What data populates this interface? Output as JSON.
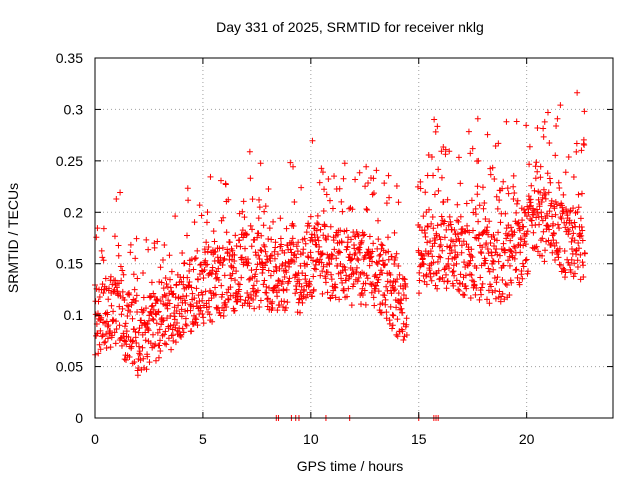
{
  "chart_data": {
    "type": "scatter",
    "title": "Day 331 of 2025, SRMTID for receiver nklg",
    "xlabel": "GPS time / hours",
    "ylabel": "SRMTID / TECUs",
    "xlim": [
      0,
      24
    ],
    "ylim": [
      0,
      0.35
    ],
    "xticks": [
      0,
      5,
      10,
      15,
      20
    ],
    "xtick_labels": [
      "0",
      "5",
      "10",
      "15",
      "20"
    ],
    "yticks": [
      0,
      0.05,
      0.1,
      0.15,
      0.2,
      0.25,
      0.3,
      0.35
    ],
    "ytick_labels": [
      "0",
      "0.05",
      "0.1",
      "0.15",
      "0.2",
      "0.25",
      "0.3",
      "0.35"
    ],
    "grid": true,
    "marker": "plus",
    "color": "#ff0000",
    "series": [
      {
        "name": "SRMTID",
        "trend": {
          "x": [
            0,
            0.5,
            1,
            1.5,
            2,
            2.5,
            3,
            3.5,
            4,
            4.5,
            5,
            5.5,
            6,
            6.5,
            7,
            7.5,
            8,
            8.5,
            9,
            9.5,
            10,
            10.5,
            11,
            11.5,
            12,
            12.5,
            13,
            13.5,
            14,
            14.5,
            15,
            15.5,
            16,
            16.5,
            17,
            17.5,
            18,
            18.5,
            19,
            19.5,
            20,
            20.5,
            21,
            21.5,
            22,
            22.5
          ],
          "y": [
            0.095,
            0.1,
            0.1,
            0.09,
            0.075,
            0.08,
            0.095,
            0.1,
            0.115,
            0.12,
            0.125,
            0.13,
            0.135,
            0.14,
            0.145,
            0.14,
            0.14,
            0.135,
            0.14,
            0.135,
            0.15,
            0.155,
            0.15,
            0.145,
            0.145,
            0.145,
            0.14,
            0.13,
            0.115,
            0.1,
            0.15,
            0.16,
            0.16,
            0.16,
            0.155,
            0.15,
            0.15,
            0.145,
            0.15,
            0.16,
            0.175,
            0.19,
            0.185,
            0.175,
            0.17,
            0.16
          ]
        },
        "spread": 0.045,
        "gaps": [
          [
            14.45,
            14.95
          ]
        ],
        "zeros": [
          8.4,
          8.5,
          9.1,
          9.3,
          9.45,
          10.7,
          11.8,
          15.0,
          15.7,
          15.8,
          15.9
        ]
      }
    ]
  }
}
